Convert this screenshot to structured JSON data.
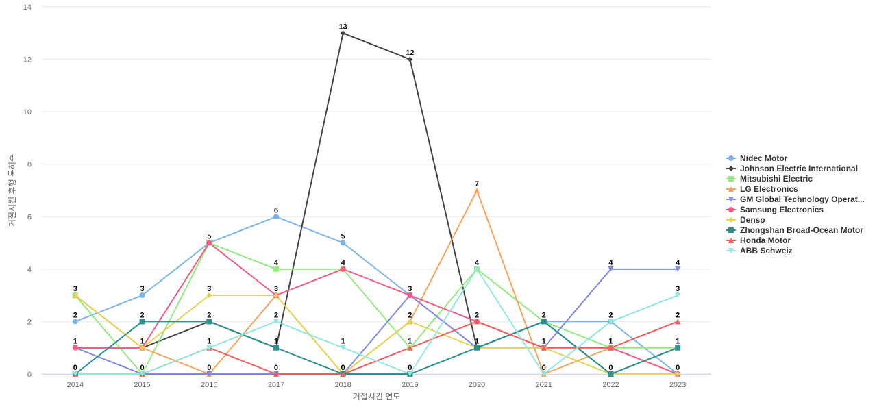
{
  "chart_data": {
    "type": "line",
    "title": "",
    "xlabel": "거절시킨 연도",
    "ylabel": "거절시킨 후행 특허수",
    "categories": [
      "2014",
      "2015",
      "2016",
      "2017",
      "2018",
      "2019",
      "2020",
      "2021",
      "2022",
      "2023"
    ],
    "ylim": [
      0,
      14
    ],
    "yticks": [
      0,
      2,
      4,
      6,
      8,
      10,
      12,
      14
    ],
    "grid": true,
    "legend_position": "right",
    "series": [
      {
        "name": "Nidec Motor",
        "color": "#7cb5ec",
        "marker": "circle",
        "values": [
          2,
          3,
          5,
          6,
          5,
          3,
          1,
          2,
          2,
          0
        ]
      },
      {
        "name": "Johnson Electric International",
        "color": "#434348",
        "marker": "diamond",
        "values": [
          1,
          1,
          2,
          1,
          13,
          12,
          1,
          2,
          0,
          1
        ]
      },
      {
        "name": "Mitsubishi Electric",
        "color": "#90ed7d",
        "marker": "square",
        "values": [
          3,
          0,
          5,
          4,
          4,
          1,
          4,
          2,
          1,
          1
        ]
      },
      {
        "name": "LG Electronics",
        "color": "#f7a35c",
        "marker": "triangle",
        "values": [
          3,
          1,
          0,
          3,
          0,
          2,
          7,
          0,
          1,
          0
        ]
      },
      {
        "name": "GM Global Technology Operat...",
        "color": "#8085e9",
        "marker": "triangle-down",
        "values": [
          1,
          0,
          0,
          0,
          0,
          3,
          1,
          1,
          4,
          4
        ]
      },
      {
        "name": "Samsung Electronics",
        "color": "#f15c80",
        "marker": "circle",
        "values": [
          1,
          1,
          5,
          3,
          4,
          3,
          2,
          1,
          1,
          0
        ]
      },
      {
        "name": "Denso",
        "color": "#e4d354",
        "marker": "diamond",
        "values": [
          3,
          1,
          3,
          3,
          0,
          2,
          1,
          1,
          0,
          0
        ]
      },
      {
        "name": "Zhongshan Broad-Ocean Motor",
        "color": "#2b908f",
        "marker": "square",
        "values": [
          0,
          2,
          2,
          1,
          0,
          0,
          1,
          2,
          0,
          1
        ]
      },
      {
        "name": "Honda Motor",
        "color": "#f45b5b",
        "marker": "triangle",
        "values": [
          0,
          0,
          1,
          0,
          0,
          1,
          2,
          1,
          1,
          2
        ]
      },
      {
        "name": "ABB Schweiz",
        "color": "#91e8e1",
        "marker": "triangle-down",
        "values": [
          0,
          0,
          1,
          2,
          1,
          0,
          4,
          0,
          2,
          3
        ]
      }
    ],
    "data_labels": [
      {
        "x": "2014",
        "values": [
          0,
          1,
          2,
          3
        ]
      },
      {
        "x": "2015",
        "values": [
          0,
          1,
          2,
          3
        ]
      },
      {
        "x": "2016",
        "values": [
          0,
          1,
          2,
          3,
          5
        ]
      },
      {
        "x": "2017",
        "values": [
          0,
          1,
          2,
          3,
          4,
          6
        ]
      },
      {
        "x": "2018",
        "values": [
          0,
          1,
          4,
          5,
          13
        ]
      },
      {
        "x": "2019",
        "values": [
          0,
          1,
          2,
          3,
          12
        ]
      },
      {
        "x": "2020",
        "values": [
          1,
          2,
          4,
          7
        ]
      },
      {
        "x": "2021",
        "values": [
          0,
          1,
          2
        ]
      },
      {
        "x": "2022",
        "values": [
          0,
          1,
          2,
          4
        ]
      },
      {
        "x": "2023",
        "values": [
          0,
          1,
          2,
          3,
          4
        ]
      }
    ]
  }
}
